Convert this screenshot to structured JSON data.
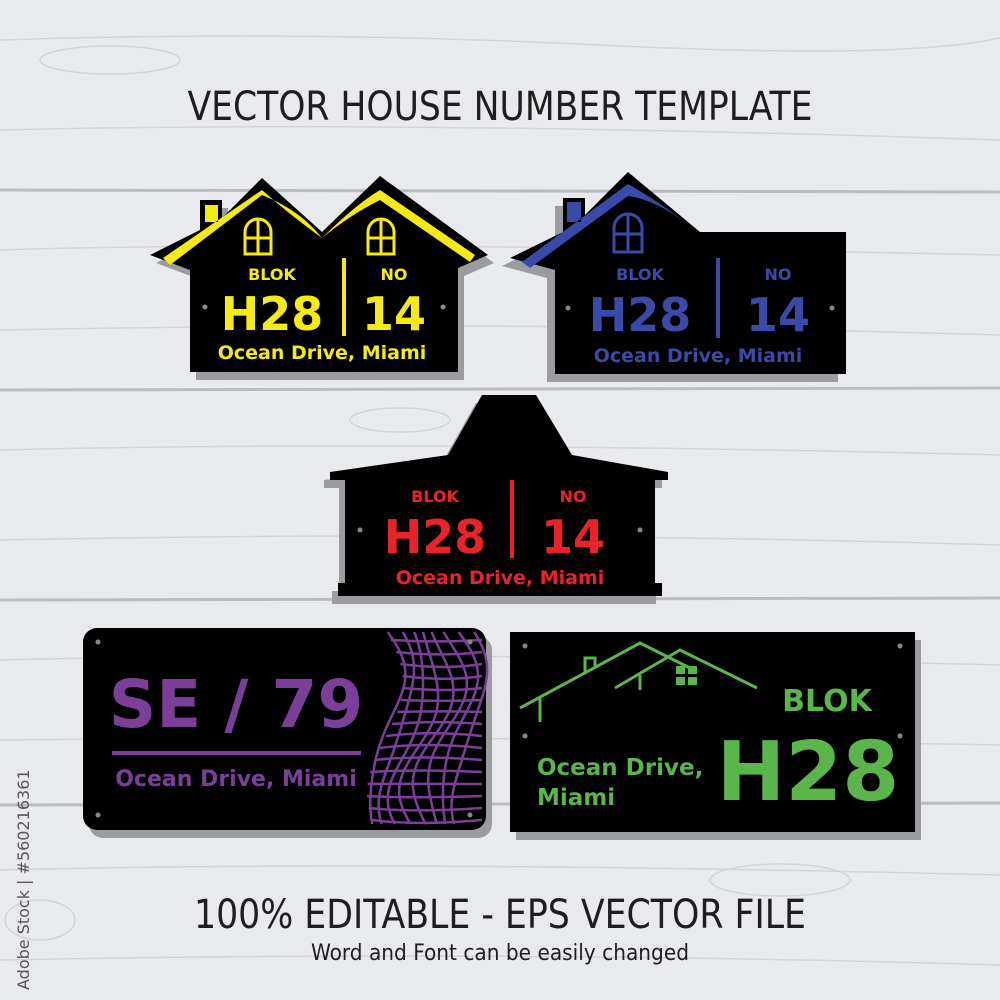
{
  "title": "VECTOR HOUSE NUMBER TEMPLATE",
  "footer": {
    "headline": "100% EDITABLE - EPS VECTOR FILE",
    "subline": "Word and Font can be easily changed"
  },
  "watermark": "Adobe Stock | #560216361",
  "colors": {
    "background": "#e9eaed",
    "plate": "#000000",
    "yellow": "#f5ea14",
    "blue": "#3a4aa8",
    "red": "#e8242a",
    "purple": "#7b3f9a",
    "green": "#5ab54a"
  },
  "signs": [
    {
      "style": "twin-house",
      "color": "yellow",
      "blok_label": "BLOK",
      "blok": "H28",
      "no_label": "NO",
      "no": "14",
      "address": "Ocean Drive, Miami"
    },
    {
      "style": "single-house",
      "color": "blue",
      "blok_label": "BLOK",
      "blok": "H28",
      "no_label": "NO",
      "no": "14",
      "address": "Ocean Drive, Miami"
    },
    {
      "style": "pagoda-house",
      "color": "red",
      "blok_label": "BLOK",
      "blok": "H28",
      "no_label": "NO",
      "no": "14",
      "address": "Ocean Drive, Miami"
    },
    {
      "style": "rounded-mesh",
      "color": "purple",
      "number": "SE / 79",
      "address": "Ocean Drive, Miami"
    },
    {
      "style": "roofline",
      "color": "green",
      "blok_label": "BLOK",
      "blok": "H28",
      "address_line1": "Ocean Drive,",
      "address_line2": "Miami"
    }
  ]
}
